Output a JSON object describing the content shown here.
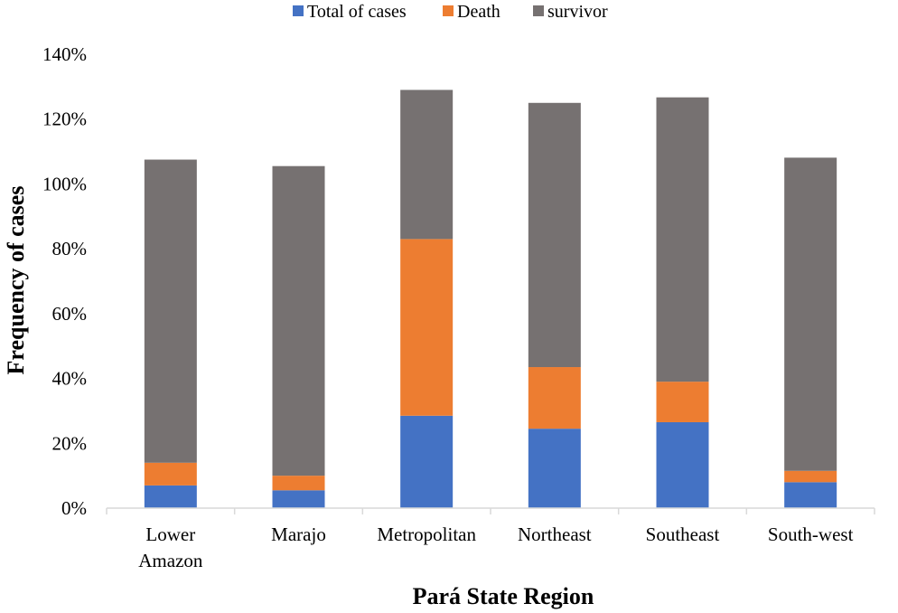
{
  "chart_data": {
    "type": "bar",
    "stacked": true,
    "title": "",
    "xlabel": "Pará State Region",
    "ylabel": "Frequency of cases",
    "ylim": [
      0,
      1.4
    ],
    "ytick_step": 0.2,
    "ytick_format": "percent",
    "grid": false,
    "legend_position": "top-center",
    "categories": [
      [
        "Lower",
        "Amazon"
      ],
      [
        "Marajo"
      ],
      [
        "Metropolitan"
      ],
      [
        "Northeast"
      ],
      [
        "Southeast"
      ],
      [
        "South-west"
      ]
    ],
    "series": [
      {
        "name": "Total of cases",
        "color": "#4472C4",
        "values": [
          0.07,
          0.055,
          0.285,
          0.245,
          0.265,
          0.08
        ]
      },
      {
        "name": "Death",
        "color": "#ED7D31",
        "values": [
          0.07,
          0.045,
          0.545,
          0.19,
          0.125,
          0.035
        ]
      },
      {
        "name": "survivor",
        "color": "#767171",
        "values": [
          0.935,
          0.955,
          0.46,
          0.815,
          0.877,
          0.966
        ]
      }
    ]
  }
}
